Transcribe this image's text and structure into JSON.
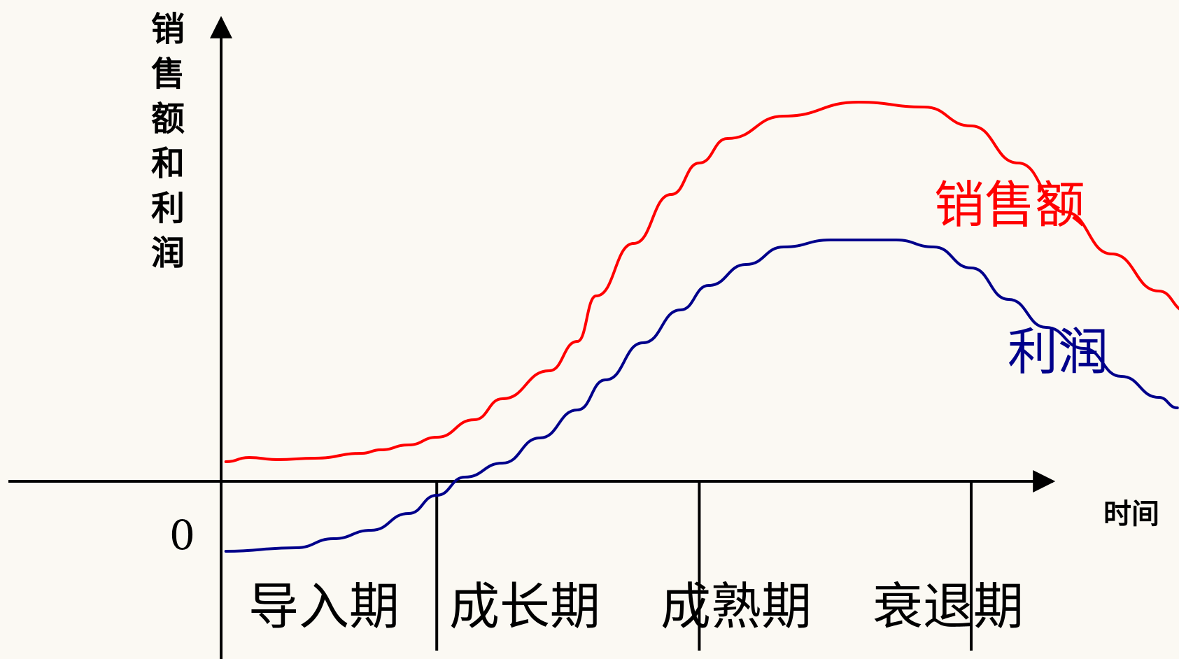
{
  "chart_data": {
    "type": "line",
    "ylabel": "销售额和利润",
    "xlabel": "时间",
    "origin_label": "0",
    "stages": [
      "导入期",
      "成长期",
      "成熟期",
      "衰退期"
    ],
    "stage_boundaries": [
      0,
      2.3,
      5.1,
      8.0,
      11.0
    ],
    "xlim": [
      0,
      11
    ],
    "ylim": [
      -1.3,
      6.2
    ],
    "series": [
      {
        "name": "销售额",
        "color": "#ff0000",
        "points": [
          [
            0.05,
            0.28
          ],
          [
            0.3,
            0.34
          ],
          [
            0.6,
            0.31
          ],
          [
            1.0,
            0.33
          ],
          [
            1.5,
            0.4
          ],
          [
            1.7,
            0.45
          ],
          [
            2.0,
            0.52
          ],
          [
            2.3,
            0.63
          ],
          [
            2.7,
            0.88
          ],
          [
            3.0,
            1.18
          ],
          [
            3.5,
            1.58
          ],
          [
            3.8,
            2.0
          ],
          [
            4.0,
            2.65
          ],
          [
            4.4,
            3.4
          ],
          [
            4.8,
            4.1
          ],
          [
            5.1,
            4.55
          ],
          [
            5.4,
            4.9
          ],
          [
            6.0,
            5.22
          ],
          [
            6.8,
            5.42
          ],
          [
            7.5,
            5.35
          ],
          [
            8.0,
            5.08
          ],
          [
            8.5,
            4.55
          ],
          [
            9.0,
            3.85
          ],
          [
            9.5,
            3.25
          ],
          [
            10.0,
            2.72
          ],
          [
            10.3,
            2.43
          ]
        ]
      },
      {
        "name": "利润",
        "color": "#00008b",
        "points": [
          [
            0.05,
            -1.0
          ],
          [
            0.8,
            -0.95
          ],
          [
            1.2,
            -0.82
          ],
          [
            1.6,
            -0.7
          ],
          [
            2.0,
            -0.46
          ],
          [
            2.3,
            -0.2
          ],
          [
            2.6,
            0.06
          ],
          [
            3.0,
            0.26
          ],
          [
            3.4,
            0.62
          ],
          [
            3.8,
            1.02
          ],
          [
            4.1,
            1.45
          ],
          [
            4.5,
            1.98
          ],
          [
            4.9,
            2.45
          ],
          [
            5.2,
            2.8
          ],
          [
            5.6,
            3.1
          ],
          [
            6.0,
            3.35
          ],
          [
            6.5,
            3.45
          ],
          [
            7.2,
            3.45
          ],
          [
            7.6,
            3.35
          ],
          [
            8.0,
            3.05
          ],
          [
            8.4,
            2.6
          ],
          [
            8.8,
            2.2
          ],
          [
            9.2,
            1.9
          ],
          [
            9.6,
            1.5
          ],
          [
            10.0,
            1.2
          ],
          [
            10.2,
            1.05
          ]
        ]
      }
    ]
  }
}
